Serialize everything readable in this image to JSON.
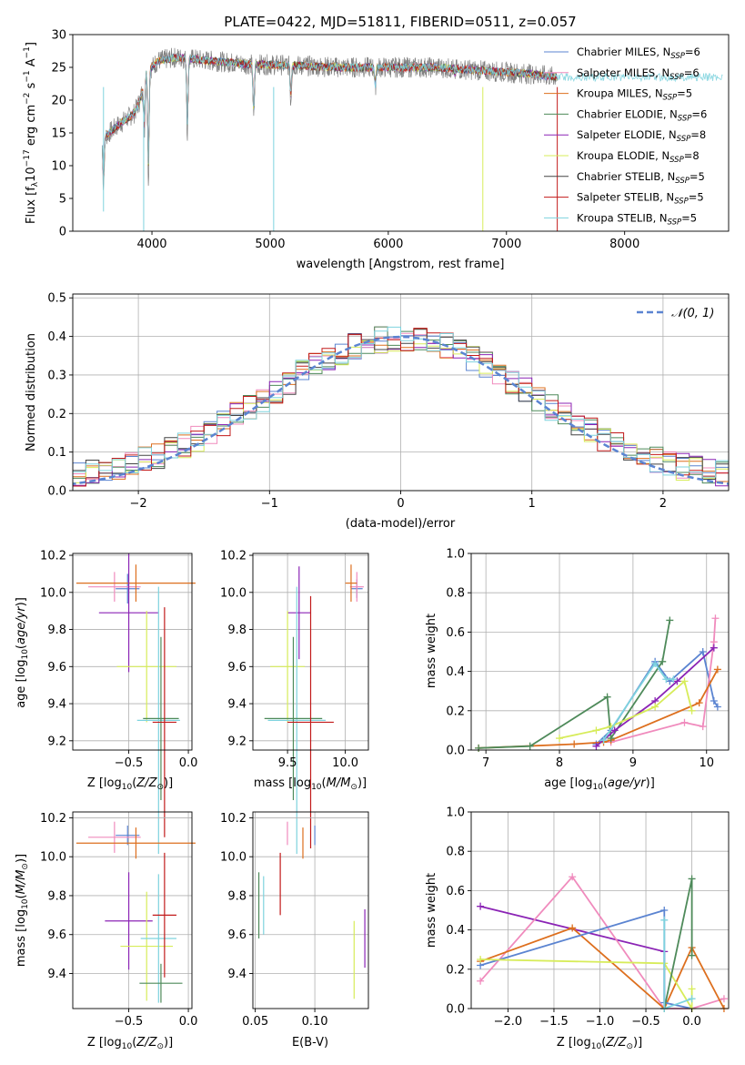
{
  "chart_data": [
    {
      "id": "spectrum",
      "type": "line",
      "title": "PLATE=0422, MJD=51811, FIBERID=0511, z=0.057",
      "xlabel": "wavelength [Angstrom, rest frame]",
      "ylabel": "Flux [f$_\\lambda$10$^{-17}$ erg cm$^{-2}$ s$^{-1}$ A$^{-1}$]",
      "ylabel_parts": {
        "a": "Flux [f",
        "b": "λ",
        "c": "10",
        "d": "−17",
        "e": " erg cm",
        "f": "−2",
        "g": " s",
        "h": "−1",
        "i": " A",
        "j": "−1",
        "k": "]"
      },
      "xlim": [
        3330,
        8880
      ],
      "ylim": [
        0,
        30
      ],
      "xticks": [
        4000,
        5000,
        6000,
        7000,
        8000
      ],
      "xtick_labels": [
        "4000",
        "5000",
        "6000",
        "7000",
        "8000"
      ],
      "yticks": [
        0,
        5,
        10,
        15,
        20,
        25,
        30
      ],
      "ytick_labels": [
        "0",
        "5",
        "10",
        "15",
        "20",
        "25",
        "30"
      ],
      "data_range_x": [
        3580,
        7430
      ],
      "continuum_x": [
        3580,
        3700,
        3850,
        3900,
        3950,
        4050,
        4200,
        4500,
        4800,
        5200,
        5600,
        6000,
        6400,
        6800,
        7200,
        7430
      ],
      "continuum_y": [
        14,
        16,
        18,
        20,
        24,
        26,
        26.5,
        26,
        25.5,
        25.3,
        25,
        25,
        25,
        24.5,
        24,
        23.5
      ],
      "dips_x": [
        3590,
        3935,
        3970,
        4300,
        4861,
        5175,
        5890,
        6563
      ],
      "dips_y": [
        7,
        15,
        8,
        15,
        17,
        20,
        22,
        24
      ],
      "legend_loc": "upper right",
      "legend": [
        {
          "label": "Chabrier MILES, N",
          "sub": "SSP",
          "suffix": "=6",
          "color": "#5b84d1"
        },
        {
          "label": "Salpeter MILES, N",
          "sub": "SSP",
          "suffix": "=6",
          "color": "#f08bbd"
        },
        {
          "label": "Kroupa MILES, N",
          "sub": "SSP",
          "suffix": "=5",
          "color": "#dd6f1e"
        },
        {
          "label": "Chabrier ELODIE, N",
          "sub": "SSP",
          "suffix": "=6",
          "color": "#4e8a5a"
        },
        {
          "label": "Salpeter ELODIE, N",
          "sub": "SSP",
          "suffix": "=8",
          "color": "#8b24b5"
        },
        {
          "label": "Kroupa ELODIE, N",
          "sub": "SSP",
          "suffix": "=8",
          "color": "#d7ec5a"
        },
        {
          "label": "Chabrier STELIB, N",
          "sub": "SSP",
          "suffix": "=5",
          "color": "#444444"
        },
        {
          "label": "Salpeter STELIB, N",
          "sub": "SSP",
          "suffix": "=5",
          "color": "#c21a1a"
        },
        {
          "label": "Kroupa STELIB, N",
          "sub": "SSP",
          "suffix": "=5",
          "color": "#7ed3de"
        }
      ],
      "data_color": "#808080"
    },
    {
      "id": "residuals",
      "type": "histogram",
      "xlabel": "(data-model)/error",
      "ylabel": "Normed distribution",
      "xlim": [
        -2.5,
        2.5
      ],
      "ylim": [
        0,
        0.51
      ],
      "xticks": [
        -2,
        -1,
        0,
        1,
        2
      ],
      "xtick_labels": [
        "−2",
        "−1",
        "0",
        "1",
        "2"
      ],
      "yticks": [
        0,
        0.1,
        0.2,
        0.3,
        0.4,
        0.5
      ],
      "ytick_labels": [
        "0.0",
        "0.1",
        "0.2",
        "0.3",
        "0.4",
        "0.5"
      ],
      "bin_width": 0.1,
      "curve_label": "𝒩(0, 1)",
      "curve_color": "#5b84d1",
      "legend_loc": "upper right"
    },
    {
      "id": "age_vs_Z",
      "type": "errorbar",
      "xlabel": "Z [log$_{10}$($Z/Z_\\odot$)]",
      "ylabel": "age [log$_{10}$($age/yr$)]",
      "xlim": [
        -0.97,
        0.03
      ],
      "ylim": [
        9.15,
        10.21
      ],
      "xticks": [
        -0.5,
        0.0
      ],
      "xtick_labels": [
        "−0.5",
        "0.0"
      ],
      "yticks": [
        9.2,
        9.4,
        9.6,
        9.8,
        10.0,
        10.2
      ],
      "ytick_labels": [
        "9.2",
        "9.4",
        "9.6",
        "9.8",
        "10.0",
        "10.2"
      ],
      "points": [
        {
          "color": "#5b84d1",
          "x": -0.51,
          "y": 10.02,
          "xe": 0.1,
          "ye": 0.08
        },
        {
          "color": "#f08bbd",
          "x": -0.62,
          "y": 10.03,
          "xe": 0.22,
          "ye": 0.08
        },
        {
          "color": "#dd6f1e",
          "x": -0.44,
          "y": 10.05,
          "xe": 0.5,
          "ye": 0.1
        },
        {
          "color": "#8b24b5",
          "x": -0.5,
          "y": 9.89,
          "xe": 0.25,
          "ye": 0.32
        },
        {
          "color": "#d7ec5a",
          "x": -0.35,
          "y": 9.6,
          "xe": 0.25,
          "ye": 0.3
        },
        {
          "color": "#7ed3de",
          "x": -0.25,
          "y": 9.31,
          "xe": 0.18,
          "ye": 0.72
        },
        {
          "color": "#4e8a5a",
          "x": -0.23,
          "y": 9.32,
          "xe": 0.15,
          "ye": 0.44
        },
        {
          "color": "#c21a1a",
          "x": -0.2,
          "y": 9.3,
          "xe": 0.1,
          "ye": 0.62
        }
      ]
    },
    {
      "id": "age_vs_mass",
      "type": "errorbar",
      "xlabel": "mass [log$_{10}$($M/M_\\odot$)]",
      "ylabel": "",
      "xlim": [
        9.2,
        10.2
      ],
      "ylim": [
        9.15,
        10.21
      ],
      "xticks": [
        9.5,
        10.0
      ],
      "xtick_labels": [
        "9.5",
        "10.0"
      ],
      "yticks": [
        9.2,
        9.4,
        9.6,
        9.8,
        10.0,
        10.2
      ],
      "ytick_labels": [
        "9.2",
        "9.4",
        "9.6",
        "9.8",
        "10.0",
        "10.2"
      ],
      "points": [
        {
          "color": "#5b84d1",
          "x": 10.1,
          "y": 10.02,
          "xe": 0.05,
          "ye": 0.05
        },
        {
          "color": "#f08bbd",
          "x": 10.1,
          "y": 10.03,
          "xe": 0.06,
          "ye": 0.08
        },
        {
          "color": "#dd6f1e",
          "x": 10.05,
          "y": 10.05,
          "xe": 0.05,
          "ye": 0.1
        },
        {
          "color": "#8b24b5",
          "x": 9.6,
          "y": 9.89,
          "xe": 0.1,
          "ye": 0.25
        },
        {
          "color": "#d7ec5a",
          "x": 9.5,
          "y": 9.6,
          "xe": 0.15,
          "ye": 0.3
        },
        {
          "color": "#7ed3de",
          "x": 9.58,
          "y": 9.31,
          "xe": 0.25,
          "ye": 0.72
        },
        {
          "color": "#4e8a5a",
          "x": 9.55,
          "y": 9.32,
          "xe": 0.25,
          "ye": 0.44
        },
        {
          "color": "#c21a1a",
          "x": 9.7,
          "y": 9.3,
          "xe": 0.2,
          "ye": 0.68
        }
      ]
    },
    {
      "id": "weight_vs_age",
      "type": "line",
      "xlabel": "age [log$_{10}$($age/yr$)]",
      "ylabel": "mass weight",
      "xlim": [
        6.8,
        10.3
      ],
      "ylim": [
        0,
        1.0
      ],
      "xticks": [
        7,
        8,
        9,
        10
      ],
      "xtick_labels": [
        "7",
        "8",
        "9",
        "10"
      ],
      "yticks": [
        0,
        0.2,
        0.4,
        0.6,
        0.8,
        1.0
      ],
      "ytick_labels": [
        "0.0",
        "0.2",
        "0.4",
        "0.6",
        "0.8",
        "1.0"
      ],
      "series": [
        {
          "color": "#5b84d1",
          "x": [
            8.5,
            8.7,
            9.3,
            9.5,
            9.95,
            10.1,
            10.15
          ],
          "y": [
            0.03,
            0.1,
            0.45,
            0.35,
            0.5,
            0.25,
            0.22
          ]
        },
        {
          "color": "#f08bbd",
          "x": [
            8.7,
            9.7,
            9.95,
            10.1,
            10.12
          ],
          "y": [
            0.04,
            0.14,
            0.12,
            0.55,
            0.67
          ]
        },
        {
          "color": "#dd6f1e",
          "x": [
            6.9,
            8.2,
            8.6,
            8.7,
            9.9,
            10.15
          ],
          "y": [
            0.01,
            0.03,
            0.04,
            0.05,
            0.24,
            0.41
          ]
        },
        {
          "color": "#4e8a5a",
          "x": [
            6.9,
            7.6,
            8.65,
            8.7,
            9.4,
            9.5
          ],
          "y": [
            0.01,
            0.02,
            0.27,
            0.06,
            0.45,
            0.66
          ]
        },
        {
          "color": "#8b24b5",
          "x": [
            8.5,
            8.75,
            9.3,
            9.6,
            10.1
          ],
          "y": [
            0.02,
            0.1,
            0.25,
            0.35,
            0.52
          ]
        },
        {
          "color": "#d7ec5a",
          "x": [
            8.0,
            8.5,
            8.7,
            9.3,
            9.7,
            9.8
          ],
          "y": [
            0.06,
            0.1,
            0.12,
            0.22,
            0.35,
            0.2
          ]
        },
        {
          "color": "#7ed3de",
          "x": [
            8.6,
            9.3,
            9.45,
            9.55
          ],
          "y": [
            0.05,
            0.44,
            0.36,
            0.36
          ]
        }
      ]
    },
    {
      "id": "mass_vs_Z",
      "type": "errorbar",
      "xlabel": "Z [log$_{10}$($Z/Z_\\odot$)]",
      "ylabel": "mass [log$_{10}$($M/M_\\odot$)]",
      "xlim": [
        -0.97,
        0.03
      ],
      "ylim": [
        9.22,
        10.23
      ],
      "xticks": [
        -0.5,
        0.0
      ],
      "xtick_labels": [
        "−0.5",
        "0.0"
      ],
      "yticks": [
        9.4,
        9.6,
        9.8,
        10.0,
        10.2
      ],
      "ytick_labels": [
        "9.4",
        "9.6",
        "9.8",
        "10.0",
        "10.2"
      ],
      "points": [
        {
          "color": "#5b84d1",
          "x": -0.51,
          "y": 10.11,
          "xe": 0.1,
          "ye": 0.05
        },
        {
          "color": "#f08bbd",
          "x": -0.62,
          "y": 10.1,
          "xe": 0.22,
          "ye": 0.08
        },
        {
          "color": "#dd6f1e",
          "x": -0.44,
          "y": 10.07,
          "xe": 0.5,
          "ye": 0.08
        },
        {
          "color": "#8b24b5",
          "x": -0.5,
          "y": 9.67,
          "xe": 0.2,
          "ye": 0.25
        },
        {
          "color": "#d7ec5a",
          "x": -0.35,
          "y": 9.54,
          "xe": 0.22,
          "ye": 0.28
        },
        {
          "color": "#7ed3de",
          "x": -0.25,
          "y": 9.58,
          "xe": 0.15,
          "ye": 0.33
        },
        {
          "color": "#4e8a5a",
          "x": -0.23,
          "y": 9.35,
          "xe": 0.18,
          "ye": 0.1
        },
        {
          "color": "#c21a1a",
          "x": -0.2,
          "y": 9.7,
          "xe": 0.1,
          "ye": 0.32
        }
      ]
    },
    {
      "id": "mass_vs_ebv",
      "type": "errorbar",
      "xlabel": "E(B-V)",
      "ylabel": "",
      "xlim": [
        0.048,
        0.145
      ],
      "ylim": [
        9.22,
        10.23
      ],
      "xticks": [
        0.05,
        0.1
      ],
      "xtick_labels": [
        "0.05",
        "0.10"
      ],
      "yticks": [
        9.4,
        9.6,
        9.8,
        10.0,
        10.2
      ],
      "ytick_labels": [
        "9.4",
        "9.6",
        "9.8",
        "10.0",
        "10.2"
      ],
      "points": [
        {
          "color": "#5b84d1",
          "x": 0.1,
          "y": 10.11,
          "xe": 0,
          "ye": 0.05
        },
        {
          "color": "#f08bbd",
          "x": 0.077,
          "y": 10.12,
          "xe": 0,
          "ye": 0.06
        },
        {
          "color": "#dd6f1e",
          "x": 0.09,
          "y": 10.07,
          "xe": 0,
          "ye": 0.08
        },
        {
          "color": "#8b24b5",
          "x": 0.142,
          "y": 9.58,
          "xe": 0,
          "ye": 0.15
        },
        {
          "color": "#d7ec5a",
          "x": 0.133,
          "y": 9.47,
          "xe": 0,
          "ye": 0.2
        },
        {
          "color": "#7ed3de",
          "x": 0.057,
          "y": 9.75,
          "xe": 0,
          "ye": 0.15
        },
        {
          "color": "#4e8a5a",
          "x": 0.053,
          "y": 9.75,
          "xe": 0,
          "ye": 0.17
        },
        {
          "color": "#c21a1a",
          "x": 0.071,
          "y": 9.86,
          "xe": 0,
          "ye": 0.16
        }
      ]
    },
    {
      "id": "weight_vs_Z",
      "type": "line",
      "xlabel": "Z [log$_{10}$($Z/Z_\\odot$)]",
      "ylabel": "mass weight",
      "xlim": [
        -2.4,
        0.4
      ],
      "ylim": [
        0,
        1.0
      ],
      "xticks": [
        -2.0,
        -1.5,
        -1.0,
        -0.5,
        0.0
      ],
      "xtick_labels": [
        "−2.0",
        "−1.5",
        "−1.0",
        "−0.5",
        "0.0"
      ],
      "yticks": [
        0,
        0.2,
        0.4,
        0.6,
        0.8,
        1.0
      ],
      "ytick_labels": [
        "0.0",
        "0.2",
        "0.4",
        "0.6",
        "0.8",
        "1.0"
      ],
      "series": [
        {
          "color": "#8b24b5",
          "x": [
            -2.3,
            -0.3,
            -0.3
          ],
          "y": [
            0.52,
            0.29,
            0.0
          ]
        },
        {
          "color": "#f08bbd",
          "x": [
            -2.3,
            -1.3,
            -0.3,
            0.0,
            0.35
          ],
          "y": [
            0.14,
            0.67,
            0.0,
            0.0,
            0.05
          ]
        },
        {
          "color": "#dd6f1e",
          "x": [
            -2.3,
            -1.3,
            -0.3,
            0.0,
            0.35
          ],
          "y": [
            0.24,
            0.41,
            0.0,
            0.31,
            0.0
          ]
        },
        {
          "color": "#5b84d1",
          "x": [
            -2.3,
            -0.3,
            -0.3,
            0.0
          ],
          "y": [
            0.22,
            0.5,
            0.03,
            0.0
          ]
        },
        {
          "color": "#d7ec5a",
          "x": [
            -2.3,
            -0.3,
            0.0,
            0.0
          ],
          "y": [
            0.25,
            0.23,
            0.0,
            0.1
          ]
        },
        {
          "color": "#4e8a5a",
          "x": [
            -0.3,
            0.0,
            0.0
          ],
          "y": [
            0.0,
            0.66,
            0.27
          ]
        },
        {
          "color": "#7ed3de",
          "x": [
            -0.3,
            -0.3,
            0.0
          ],
          "y": [
            0.45,
            0.0,
            0.05
          ]
        }
      ]
    }
  ],
  "axis_parts": {
    "z_label": {
      "a": "Z [log",
      "sub": "10",
      "b": "(",
      "it": "Z/Z",
      "sun": "⊙",
      "c": ")]"
    },
    "mass_label": {
      "a": "mass [log",
      "sub": "10",
      "b": "(",
      "it": "M/M",
      "sun": "⊙",
      "c": ")]"
    },
    "age_label": {
      "a": "age  [log",
      "sub": "10",
      "b": "(",
      "it": "age/yr",
      "c": ")]"
    }
  }
}
